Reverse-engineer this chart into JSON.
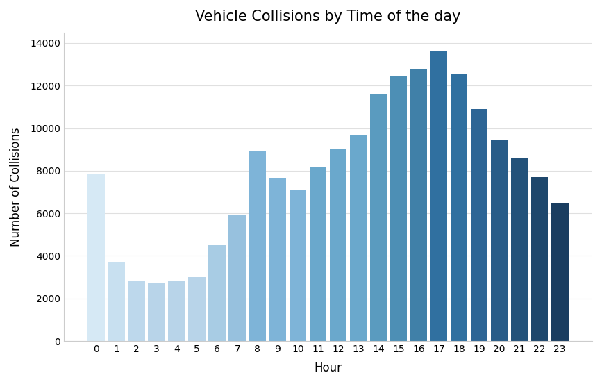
{
  "title": "Vehicle Collisions by Time of the day",
  "xlabel": "Hour",
  "ylabel": "Number of Collisions",
  "hours": [
    0,
    1,
    2,
    3,
    4,
    5,
    6,
    7,
    8,
    9,
    10,
    11,
    12,
    13,
    14,
    15,
    16,
    17,
    18,
    19,
    20,
    21,
    22,
    23
  ],
  "values": [
    7850,
    3700,
    2850,
    2700,
    2850,
    3000,
    4500,
    5900,
    8900,
    7650,
    7100,
    8150,
    9050,
    9700,
    11600,
    12450,
    12750,
    13600,
    12550,
    10900,
    9450,
    8600,
    7700,
    6500
  ],
  "bar_colors": [
    "#d6e9f5",
    "#c8e0f0",
    "#bdd8ec",
    "#b8d4e9",
    "#b8d4e9",
    "#b8d4e9",
    "#a8cce4",
    "#97c1de",
    "#7eb4d8",
    "#7eb4d8",
    "#7eb4d8",
    "#6aa8cc",
    "#6aa8cc",
    "#6aa8cc",
    "#5a9bbf",
    "#4d8fb5",
    "#4080a8",
    "#3070a0",
    "#3070a0",
    "#2d6595",
    "#285c88",
    "#23527a",
    "#1e476c",
    "#1a3d60"
  ],
  "ylim": [
    0,
    14500
  ],
  "yticks": [
    0,
    2000,
    4000,
    6000,
    8000,
    10000,
    12000,
    14000
  ],
  "bar_width": 0.85,
  "background_color": "#ffffff",
  "plot_bg_color": "#ffffff",
  "grid_color": "#e0e0e0",
  "spine_color": "#cccccc",
  "title_fontsize": 15,
  "label_fontsize": 12,
  "tick_fontsize": 10
}
